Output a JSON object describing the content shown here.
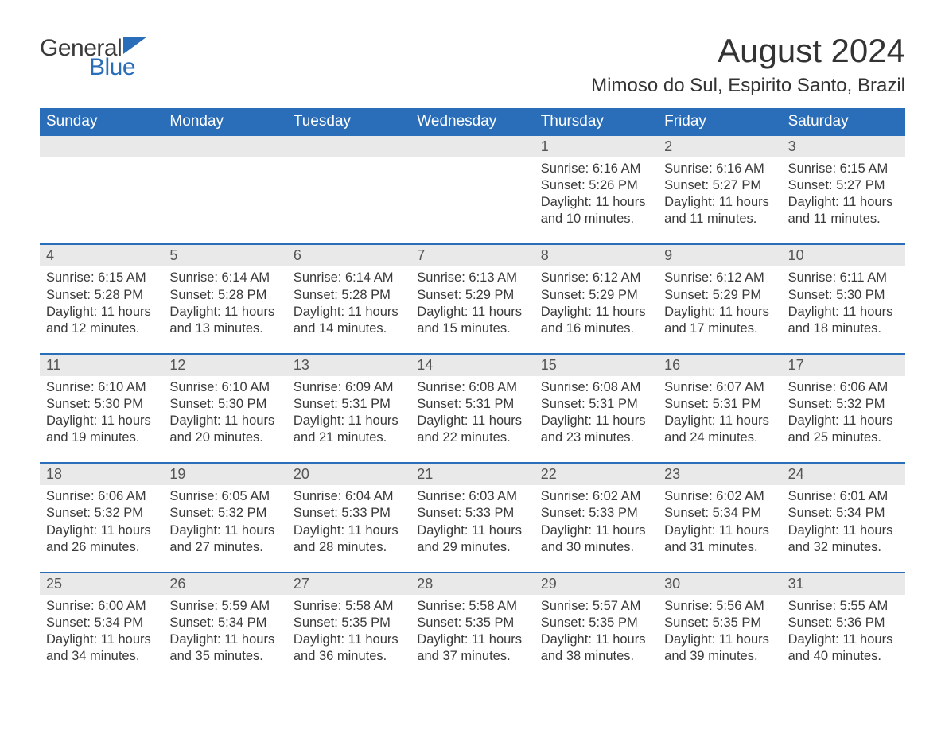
{
  "logo": {
    "general": "General",
    "blue": "Blue",
    "shape_color": "#2a6db8"
  },
  "title": "August 2024",
  "location": "Mimoso do Sul, Espirito Santo, Brazil",
  "colors": {
    "header_bg": "#2a6db8",
    "header_text": "#ffffff",
    "daynum_bg": "#e9e9e9",
    "week_border": "#2a6db8",
    "body_text": "#3a3a3a",
    "page_bg": "#ffffff"
  },
  "fonts": {
    "title_size": 42,
    "location_size": 24,
    "weekday_size": 19,
    "cell_size": 16.5
  },
  "weekdays": [
    "Sunday",
    "Monday",
    "Tuesday",
    "Wednesday",
    "Thursday",
    "Friday",
    "Saturday"
  ],
  "weeks": [
    [
      null,
      null,
      null,
      null,
      {
        "n": "1",
        "sunrise": "Sunrise: 6:16 AM",
        "sunset": "Sunset: 5:26 PM",
        "daylight": "Daylight: 11 hours and 10 minutes."
      },
      {
        "n": "2",
        "sunrise": "Sunrise: 6:16 AM",
        "sunset": "Sunset: 5:27 PM",
        "daylight": "Daylight: 11 hours and 11 minutes."
      },
      {
        "n": "3",
        "sunrise": "Sunrise: 6:15 AM",
        "sunset": "Sunset: 5:27 PM",
        "daylight": "Daylight: 11 hours and 11 minutes."
      }
    ],
    [
      {
        "n": "4",
        "sunrise": "Sunrise: 6:15 AM",
        "sunset": "Sunset: 5:28 PM",
        "daylight": "Daylight: 11 hours and 12 minutes."
      },
      {
        "n": "5",
        "sunrise": "Sunrise: 6:14 AM",
        "sunset": "Sunset: 5:28 PM",
        "daylight": "Daylight: 11 hours and 13 minutes."
      },
      {
        "n": "6",
        "sunrise": "Sunrise: 6:14 AM",
        "sunset": "Sunset: 5:28 PM",
        "daylight": "Daylight: 11 hours and 14 minutes."
      },
      {
        "n": "7",
        "sunrise": "Sunrise: 6:13 AM",
        "sunset": "Sunset: 5:29 PM",
        "daylight": "Daylight: 11 hours and 15 minutes."
      },
      {
        "n": "8",
        "sunrise": "Sunrise: 6:12 AM",
        "sunset": "Sunset: 5:29 PM",
        "daylight": "Daylight: 11 hours and 16 minutes."
      },
      {
        "n": "9",
        "sunrise": "Sunrise: 6:12 AM",
        "sunset": "Sunset: 5:29 PM",
        "daylight": "Daylight: 11 hours and 17 minutes."
      },
      {
        "n": "10",
        "sunrise": "Sunrise: 6:11 AM",
        "sunset": "Sunset: 5:30 PM",
        "daylight": "Daylight: 11 hours and 18 minutes."
      }
    ],
    [
      {
        "n": "11",
        "sunrise": "Sunrise: 6:10 AM",
        "sunset": "Sunset: 5:30 PM",
        "daylight": "Daylight: 11 hours and 19 minutes."
      },
      {
        "n": "12",
        "sunrise": "Sunrise: 6:10 AM",
        "sunset": "Sunset: 5:30 PM",
        "daylight": "Daylight: 11 hours and 20 minutes."
      },
      {
        "n": "13",
        "sunrise": "Sunrise: 6:09 AM",
        "sunset": "Sunset: 5:31 PM",
        "daylight": "Daylight: 11 hours and 21 minutes."
      },
      {
        "n": "14",
        "sunrise": "Sunrise: 6:08 AM",
        "sunset": "Sunset: 5:31 PM",
        "daylight": "Daylight: 11 hours and 22 minutes."
      },
      {
        "n": "15",
        "sunrise": "Sunrise: 6:08 AM",
        "sunset": "Sunset: 5:31 PM",
        "daylight": "Daylight: 11 hours and 23 minutes."
      },
      {
        "n": "16",
        "sunrise": "Sunrise: 6:07 AM",
        "sunset": "Sunset: 5:31 PM",
        "daylight": "Daylight: 11 hours and 24 minutes."
      },
      {
        "n": "17",
        "sunrise": "Sunrise: 6:06 AM",
        "sunset": "Sunset: 5:32 PM",
        "daylight": "Daylight: 11 hours and 25 minutes."
      }
    ],
    [
      {
        "n": "18",
        "sunrise": "Sunrise: 6:06 AM",
        "sunset": "Sunset: 5:32 PM",
        "daylight": "Daylight: 11 hours and 26 minutes."
      },
      {
        "n": "19",
        "sunrise": "Sunrise: 6:05 AM",
        "sunset": "Sunset: 5:32 PM",
        "daylight": "Daylight: 11 hours and 27 minutes."
      },
      {
        "n": "20",
        "sunrise": "Sunrise: 6:04 AM",
        "sunset": "Sunset: 5:33 PM",
        "daylight": "Daylight: 11 hours and 28 minutes."
      },
      {
        "n": "21",
        "sunrise": "Sunrise: 6:03 AM",
        "sunset": "Sunset: 5:33 PM",
        "daylight": "Daylight: 11 hours and 29 minutes."
      },
      {
        "n": "22",
        "sunrise": "Sunrise: 6:02 AM",
        "sunset": "Sunset: 5:33 PM",
        "daylight": "Daylight: 11 hours and 30 minutes."
      },
      {
        "n": "23",
        "sunrise": "Sunrise: 6:02 AM",
        "sunset": "Sunset: 5:34 PM",
        "daylight": "Daylight: 11 hours and 31 minutes."
      },
      {
        "n": "24",
        "sunrise": "Sunrise: 6:01 AM",
        "sunset": "Sunset: 5:34 PM",
        "daylight": "Daylight: 11 hours and 32 minutes."
      }
    ],
    [
      {
        "n": "25",
        "sunrise": "Sunrise: 6:00 AM",
        "sunset": "Sunset: 5:34 PM",
        "daylight": "Daylight: 11 hours and 34 minutes."
      },
      {
        "n": "26",
        "sunrise": "Sunrise: 5:59 AM",
        "sunset": "Sunset: 5:34 PM",
        "daylight": "Daylight: 11 hours and 35 minutes."
      },
      {
        "n": "27",
        "sunrise": "Sunrise: 5:58 AM",
        "sunset": "Sunset: 5:35 PM",
        "daylight": "Daylight: 11 hours and 36 minutes."
      },
      {
        "n": "28",
        "sunrise": "Sunrise: 5:58 AM",
        "sunset": "Sunset: 5:35 PM",
        "daylight": "Daylight: 11 hours and 37 minutes."
      },
      {
        "n": "29",
        "sunrise": "Sunrise: 5:57 AM",
        "sunset": "Sunset: 5:35 PM",
        "daylight": "Daylight: 11 hours and 38 minutes."
      },
      {
        "n": "30",
        "sunrise": "Sunrise: 5:56 AM",
        "sunset": "Sunset: 5:35 PM",
        "daylight": "Daylight: 11 hours and 39 minutes."
      },
      {
        "n": "31",
        "sunrise": "Sunrise: 5:55 AM",
        "sunset": "Sunset: 5:36 PM",
        "daylight": "Daylight: 11 hours and 40 minutes."
      }
    ]
  ]
}
